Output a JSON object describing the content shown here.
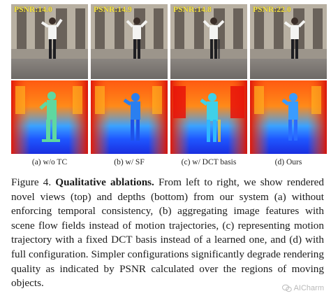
{
  "figure": {
    "panels": [
      {
        "id": "a",
        "psnr_label": "PSNR:14.0",
        "sublabel": "(a) w/o TC"
      },
      {
        "id": "b",
        "psnr_label": "PSNR:14.9",
        "sublabel": "(b) w/ SF"
      },
      {
        "id": "c",
        "psnr_label": "PSNR:14.8",
        "sublabel": "(c) w/ DCT basis"
      },
      {
        "id": "d",
        "psnr_label": "PSNR:22.0",
        "sublabel": "(d) Ours"
      }
    ],
    "colors": {
      "psnr_text": "#f2e14a",
      "depth_background": "#2a4cff",
      "depth_mid": "#ff6a10",
      "depth_subject_a": "#5fd8a0"
    }
  },
  "caption": {
    "label": "Figure 4.",
    "title": "Qualitative ablations.",
    "body": " From left to right, we show rendered novel views (top) and depths (bottom) from our system (a) without enforcing temporal consistency, (b) aggregating image features with scene flow fields instead of motion trajectories, (c) representing motion trajectory with a fixed DCT basis instead of a learned one, and (d) with full configuration. Simpler configurations significantly degrade rendering quality as indicated by PSNR calculated over the regions of moving objects."
  },
  "watermark": {
    "text": "AICharm"
  }
}
